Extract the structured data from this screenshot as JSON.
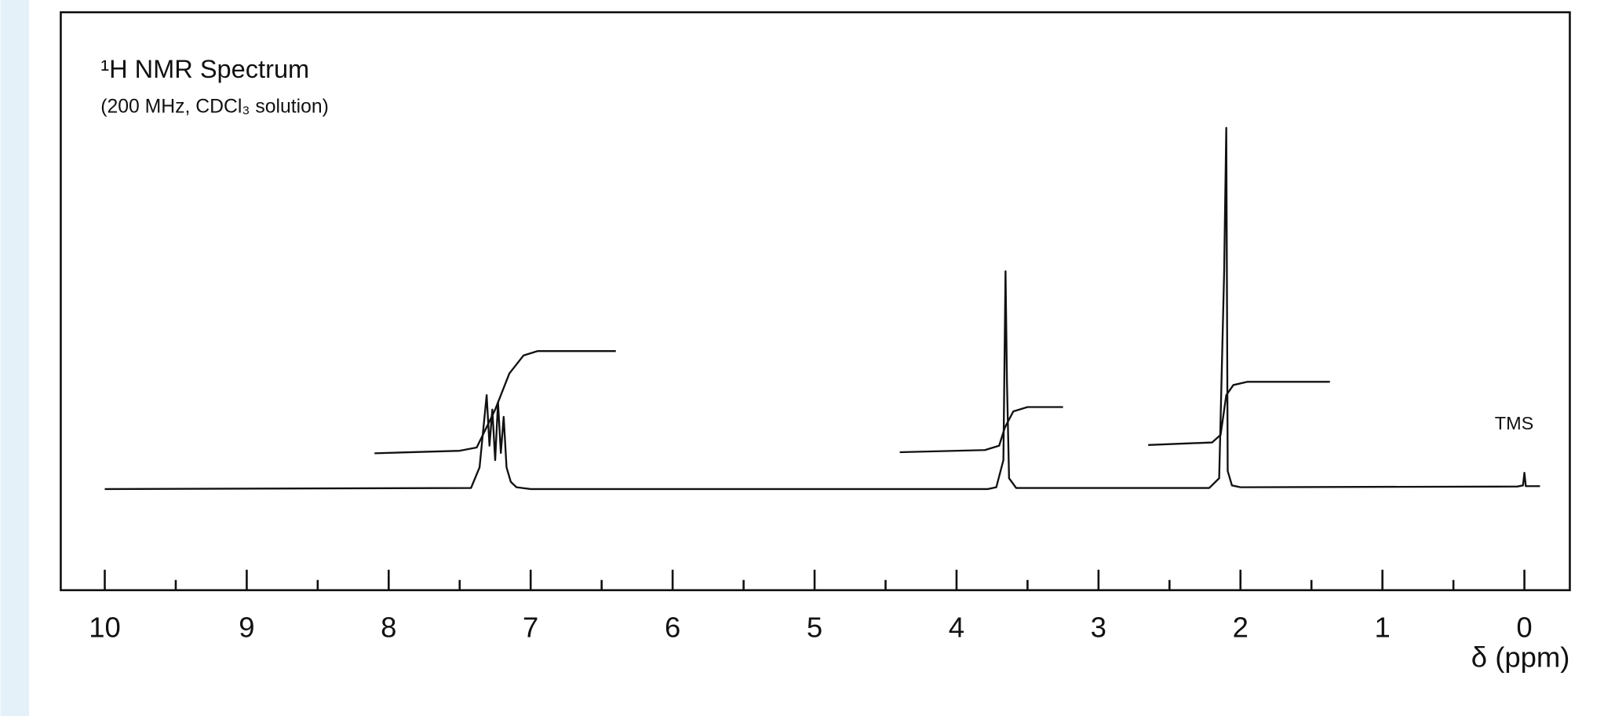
{
  "chart_data": {
    "type": "line",
    "title": "¹H NMR Spectrum",
    "subtitle": "(200 MHz, CDCl₃ solution)",
    "x_label": "δ (ppm)",
    "annotation": "TMS",
    "xlim": [
      10.31,
      -0.32
    ],
    "ylim": [
      -28,
      132
    ],
    "xticks": [
      10,
      9,
      8,
      7,
      6,
      5,
      4,
      3,
      2,
      1,
      0
    ],
    "minor_xticks": [
      9.5,
      8.5,
      7.5,
      6.5,
      5.5,
      4.5,
      3.5,
      2.5,
      1.5,
      0.5
    ],
    "color": "#111111",
    "series": [
      {
        "name": "spectrum",
        "x": [
          10,
          7.42,
          7.36,
          7.33,
          7.31,
          7.29,
          7.27,
          7.25,
          7.23,
          7.21,
          7.19,
          7.17,
          7.14,
          7.1,
          7.0,
          3.78,
          3.72,
          3.67,
          3.655,
          3.645,
          3.63,
          3.58,
          2.22,
          2.15,
          2.115,
          2.1,
          2.09,
          2.06,
          2.0,
          0.05,
          0.01,
          0.0,
          -0.01,
          -0.11
        ],
        "values": [
          0,
          0.3,
          6,
          18,
          26,
          12,
          22,
          8,
          24,
          10,
          20,
          6,
          2,
          0.5,
          0,
          0,
          0.5,
          8,
          60.3,
          30,
          3,
          0.3,
          0.3,
          3,
          60,
          100,
          5,
          1,
          0.5,
          0.7,
          1,
          4.5,
          0.8,
          0.8
        ]
      },
      {
        "name": "integral",
        "x": [
          8.1,
          7.5,
          7.38,
          7.25,
          7.15,
          7.05,
          6.95,
          6.4,
          null,
          4.4,
          3.8,
          3.7,
          3.66,
          3.6,
          3.5,
          3.25,
          null,
          2.65,
          2.2,
          2.14,
          2.1,
          2.05,
          1.95,
          1.37
        ],
        "values": [
          9.9,
          10.6,
          11.5,
          22,
          32,
          37,
          38.2,
          38.2,
          null,
          10.2,
          10.8,
          12,
          17,
          21.5,
          22.7,
          22.7,
          null,
          12.2,
          12.9,
          15,
          26,
          28.8,
          29.7,
          29.7
        ]
      }
    ]
  }
}
